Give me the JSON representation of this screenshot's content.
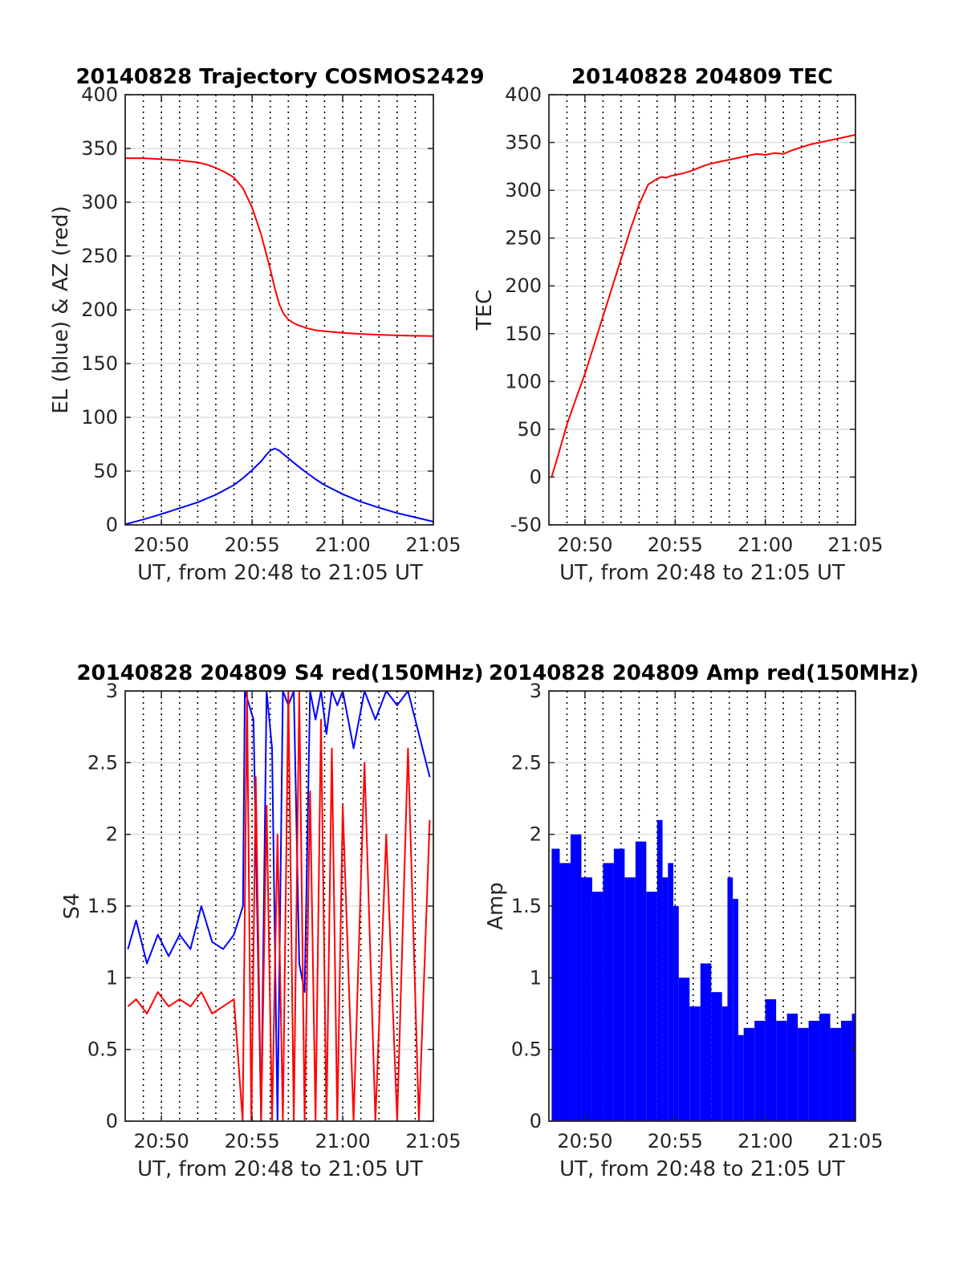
{
  "figure": {
    "background": "#ffffff",
    "colors": {
      "red": "#ff0000",
      "blue": "#0000ff",
      "axis": "#262626",
      "grid_solid": "#dfdfdf",
      "grid_dotted": "#000000"
    }
  },
  "chart_data": [
    {
      "id": "trajectory",
      "type": "line",
      "title": "20140828 Trajectory COSMOS2429",
      "xlabel": "UT, from 20:48 to 21:05 UT",
      "ylabel": "EL (blue) & AZ (red)",
      "xlim": [
        20.8,
        21.0833
      ],
      "ylim": [
        0,
        400
      ],
      "xticks": [
        20.8333,
        20.9167,
        21.0,
        21.0833
      ],
      "xtick_labels": [
        "20:50",
        "20:55",
        "21:00",
        "21:05"
      ],
      "yticks": [
        0,
        50,
        100,
        150,
        200,
        250,
        300,
        350,
        400
      ],
      "ytick_labels": [
        "0",
        "50",
        "100",
        "150",
        "200",
        "250",
        "300",
        "350",
        "400"
      ],
      "minor_dotted_x": true,
      "grid": true,
      "series": [
        {
          "color": "#ff0000",
          "x": [
            20.8,
            20.8167,
            20.8333,
            20.85,
            20.8667,
            20.875,
            20.8833,
            20.8917,
            20.9,
            20.9083,
            20.9167,
            20.925,
            20.9333,
            20.9375,
            20.9417,
            20.9458,
            20.95,
            20.9542,
            20.9583,
            20.9667,
            20.975,
            20.9833,
            21.0,
            21.0167,
            21.0333,
            21.05,
            21.0667,
            21.0833
          ],
          "values": [
            341,
            341,
            340,
            339,
            337,
            335,
            332,
            328,
            323,
            313,
            295,
            270,
            238,
            220,
            205,
            196,
            191,
            188,
            186,
            183,
            181,
            180,
            178.5,
            177.5,
            176.8,
            176.2,
            175.8,
            175.5
          ]
        },
        {
          "color": "#0000ff",
          "x": [
            20.8,
            20.8167,
            20.8333,
            20.85,
            20.8667,
            20.8833,
            20.9,
            20.9083,
            20.9167,
            20.925,
            20.9292,
            20.9333,
            20.9375,
            20.9417,
            20.9458,
            20.95,
            20.9583,
            20.9667,
            20.975,
            20.9833,
            21.0,
            21.0167,
            21.0333,
            21.05,
            21.0667,
            21.0833
          ],
          "values": [
            0.5,
            5,
            10,
            15.5,
            21,
            28,
            37,
            43.5,
            51,
            59,
            64.5,
            69,
            71,
            69,
            65.5,
            62,
            55,
            48.5,
            42.5,
            37,
            28.5,
            21.5,
            16,
            11,
            7,
            3
          ]
        }
      ]
    },
    {
      "id": "tec",
      "type": "line",
      "title": "20140828 204809 TEC",
      "xlabel": "UT, from 20:48 to 21:05 UT",
      "ylabel": "TEC",
      "xlim": [
        20.8,
        21.0833
      ],
      "ylim": [
        -50,
        400
      ],
      "xticks": [
        20.8333,
        20.9167,
        21.0,
        21.0833
      ],
      "xtick_labels": [
        "20:50",
        "20:55",
        "21:00",
        "21:05"
      ],
      "yticks": [
        -50,
        0,
        50,
        100,
        150,
        200,
        250,
        300,
        350,
        400
      ],
      "ytick_labels": [
        "-50",
        "0",
        "50",
        "100",
        "150",
        "200",
        "250",
        "300",
        "350",
        "400"
      ],
      "minor_dotted_x": true,
      "grid": true,
      "series": [
        {
          "color": "#ff0000",
          "x": [
            20.8025,
            20.8083,
            20.8167,
            20.825,
            20.8333,
            20.8417,
            20.85,
            20.8583,
            20.8667,
            20.875,
            20.8833,
            20.8917,
            20.9,
            20.9042,
            20.9083,
            20.9125,
            20.9167,
            20.925,
            20.9333,
            20.9417,
            20.95,
            20.9583,
            20.9667,
            20.975,
            20.9833,
            20.9917,
            21.0,
            21.0083,
            21.0167,
            21.025,
            21.0333,
            21.0417,
            21.05,
            21.0583,
            21.0667,
            21.075,
            21.0833
          ],
          "values": [
            0,
            22,
            55,
            82,
            108,
            138,
            168,
            198,
            228,
            258,
            285,
            306,
            312,
            314,
            313,
            315,
            316,
            318,
            321,
            325,
            328,
            330,
            332,
            334,
            336,
            338,
            337,
            339,
            338,
            342,
            345,
            348,
            350,
            352,
            354,
            356,
            358
          ]
        }
      ]
    },
    {
      "id": "s4",
      "type": "line",
      "title": "20140828 204809 S4 red(150MHz)",
      "xlabel": "UT, from 20:48 to 21:05 UT",
      "ylabel": "S4",
      "xlim": [
        20.8,
        21.0833
      ],
      "ylim": [
        0,
        3
      ],
      "xticks": [
        20.8333,
        20.9167,
        21.0,
        21.0833
      ],
      "xtick_labels": [
        "20:50",
        "20:55",
        "21:00",
        "21:05"
      ],
      "yticks": [
        0,
        0.5,
        1,
        1.5,
        2,
        2.5,
        3
      ],
      "ytick_labels": [
        "0",
        "0.5",
        "1",
        "1.5",
        "2",
        "2.5",
        "3"
      ],
      "minor_dotted_x": true,
      "grid": true,
      "series": [
        {
          "color": "#0000ff",
          "x": [
            20.8025,
            20.81,
            20.82,
            20.83,
            20.84,
            20.85,
            20.86,
            20.87,
            20.88,
            20.89,
            20.9,
            20.9083,
            20.91,
            20.918,
            20.925,
            20.93,
            20.935,
            20.94,
            20.945,
            20.95,
            20.955,
            20.96,
            20.965,
            20.97,
            20.975,
            20.98,
            20.985,
            20.99,
            20.995,
            21.0,
            21.01,
            21.02,
            21.03,
            21.04,
            21.05,
            21.06,
            21.07,
            21.08
          ],
          "values": [
            1.2,
            1.4,
            1.1,
            1.3,
            1.15,
            1.3,
            1.2,
            1.5,
            1.25,
            1.2,
            1.3,
            1.5,
            3.0,
            2.8,
            0.0,
            3.0,
            2.6,
            0.0,
            3.0,
            2.9,
            3.0,
            1.1,
            0.9,
            3.0,
            2.8,
            3.0,
            2.7,
            3.0,
            2.9,
            3.0,
            2.6,
            3.0,
            2.8,
            3.0,
            2.9,
            3.0,
            2.7,
            2.4
          ]
        },
        {
          "color": "#ff0000",
          "x": [
            20.8025,
            20.81,
            20.82,
            20.83,
            20.84,
            20.85,
            20.86,
            20.87,
            20.88,
            20.89,
            20.9,
            20.908,
            20.912,
            20.916,
            20.92,
            20.925,
            20.93,
            20.935,
            20.94,
            20.945,
            20.95,
            20.955,
            20.96,
            20.965,
            20.97,
            20.975,
            20.98,
            20.985,
            20.99,
            20.995,
            21.0,
            21.01,
            21.02,
            21.03,
            21.04,
            21.05,
            21.06,
            21.07,
            21.08
          ],
          "values": [
            0.8,
            0.85,
            0.75,
            0.9,
            0.8,
            0.85,
            0.8,
            0.9,
            0.75,
            0.8,
            0.85,
            0.0,
            3.0,
            0.0,
            2.4,
            0.0,
            2.2,
            0.0,
            2.0,
            0.0,
            3.0,
            0.0,
            3.0,
            0.0,
            2.3,
            0.0,
            2.8,
            0.0,
            2.6,
            0.0,
            2.2,
            0.0,
            2.5,
            0.0,
            2.0,
            0.0,
            2.6,
            0.0,
            2.1
          ]
        }
      ]
    },
    {
      "id": "amp",
      "type": "bar",
      "title": "20140828 204809 Amp red(150MHz)",
      "xlabel": "UT, from 20:48 to 21:05 UT",
      "ylabel": "Amp",
      "xlim": [
        20.8,
        21.0833
      ],
      "ylim": [
        0,
        3
      ],
      "xticks": [
        20.8333,
        20.9167,
        21.0,
        21.0833
      ],
      "xtick_labels": [
        "20:50",
        "20:55",
        "21:00",
        "21:05"
      ],
      "yticks": [
        0,
        0.5,
        1,
        1.5,
        2,
        2.5,
        3
      ],
      "ytick_labels": [
        "0",
        "0.5",
        "1",
        "1.5",
        "2",
        "2.5",
        "3"
      ],
      "minor_dotted_x": true,
      "grid": true,
      "series": [
        {
          "color": "#0000ff",
          "x": [
            20.8025,
            20.81,
            20.82,
            20.83,
            20.84,
            20.85,
            20.86,
            20.87,
            20.88,
            20.89,
            20.9,
            20.905,
            20.91,
            20.915,
            20.92,
            20.93,
            20.94,
            20.95,
            20.96,
            20.965,
            20.97,
            20.975,
            20.98,
            20.99,
            21.0,
            21.01,
            21.02,
            21.03,
            21.04,
            21.05,
            21.06,
            21.07,
            21.08
          ],
          "values": [
            1.9,
            1.8,
            2.0,
            1.7,
            1.6,
            1.8,
            1.9,
            1.7,
            1.95,
            1.6,
            2.1,
            1.7,
            1.8,
            1.5,
            1.0,
            0.8,
            1.1,
            0.9,
            0.8,
            1.7,
            1.55,
            0.6,
            0.65,
            0.7,
            0.85,
            0.7,
            0.75,
            0.65,
            0.7,
            0.75,
            0.65,
            0.7,
            0.75
          ]
        }
      ]
    }
  ]
}
